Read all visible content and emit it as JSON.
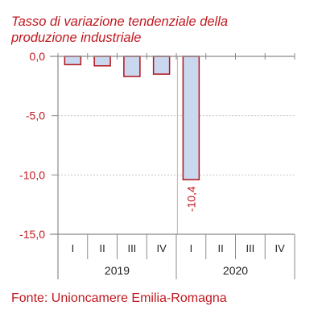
{
  "title_lines": [
    "Tasso di variazione tendenziale della",
    "produzione industriale"
  ],
  "source": "Fonte: Unioncamere Emilia-Romagna",
  "colors": {
    "accent": "#c0181f",
    "bar_fill": "#c9d7ef",
    "bar_stroke": "#b3141c",
    "axis": "#8a8a8a",
    "grid": "#c8c8c8",
    "text": "#222222"
  },
  "chart_data": {
    "type": "bar",
    "categories": [
      "I",
      "II",
      "III",
      "IV",
      "I",
      "II",
      "III",
      "IV"
    ],
    "groups": [
      {
        "label": "2019",
        "count": 4
      },
      {
        "label": "2020",
        "count": 4
      }
    ],
    "values": [
      -0.7,
      -0.8,
      -1.7,
      -1.5,
      -10.4,
      null,
      null,
      null
    ],
    "data_labels": [
      {
        "index": 4,
        "text": "-10,4"
      }
    ],
    "y_ticks": [
      "0,0",
      "-5,0",
      "-10,0",
      "-15,0"
    ],
    "y_tick_values": [
      0,
      -5,
      -10,
      -15
    ],
    "ylim": [
      -15,
      0
    ],
    "grid": true,
    "xlabel": "",
    "ylabel": ""
  }
}
